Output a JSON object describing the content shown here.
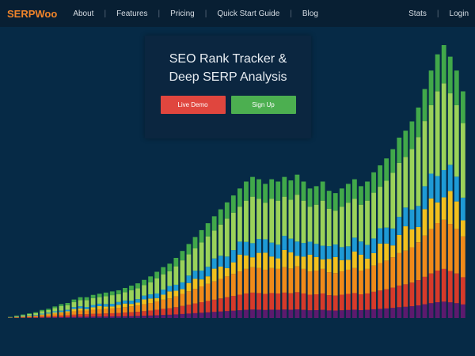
{
  "nav": {
    "brand": "SERPWoo",
    "links": [
      "About",
      "Features",
      "Pricing",
      "Quick Start Guide",
      "Blog"
    ],
    "right_links": [
      "Stats",
      "Login"
    ],
    "separator": "|"
  },
  "hero": {
    "title": "SEO Rank Tracker & Deep SERP Analysis",
    "buttons": {
      "demo": "Live Demo",
      "signup": "Sign Up"
    }
  },
  "colors": {
    "background": "#062a46",
    "navbar": "#081f33",
    "brand": "#f0842a",
    "demo_button": "#e0463e",
    "signup_button": "#4caf50",
    "stack_layers": [
      "#5c1a6e",
      "#d63a2a",
      "#f08a1a",
      "#f2c01e",
      "#1e9ad6",
      "#9ad25a",
      "#41a84a"
    ]
  },
  "chart_data": {
    "type": "bar",
    "stacked": true,
    "bar_count": 72,
    "totals": [
      1,
      2,
      3,
      4,
      5,
      7,
      8,
      10,
      12,
      13,
      16,
      18,
      18,
      20,
      21,
      22,
      23,
      24,
      26,
      28,
      30,
      33,
      36,
      40,
      44,
      47,
      52,
      58,
      64,
      70,
      76,
      82,
      88,
      94,
      100,
      106,
      112,
      118,
      122,
      120,
      116,
      120,
      118,
      122,
      119,
      124,
      118,
      112,
      114,
      118,
      110,
      108,
      112,
      116,
      120,
      114,
      118,
      126,
      132,
      138,
      146,
      156,
      162,
      170,
      182,
      198,
      214,
      228,
      236,
      226,
      214,
      196
    ],
    "layer_shares": [
      0.06,
      0.12,
      0.18,
      0.1,
      0.1,
      0.3,
      0.14
    ]
  }
}
